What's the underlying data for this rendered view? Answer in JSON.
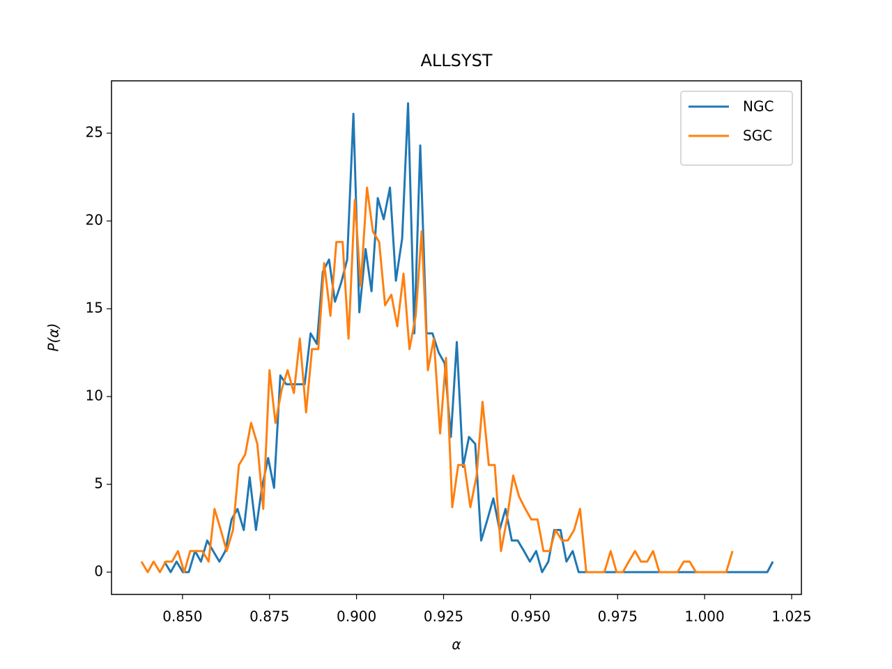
{
  "chart_data": {
    "type": "line",
    "title": "ALLSYST",
    "xlabel": "α",
    "ylabel": "P(α)",
    "xlim": [
      0.8296,
      1.0278
    ],
    "ylim": [
      -1.27,
      27.98
    ],
    "xticks": [
      {
        "value": 0.85,
        "label": "0.850"
      },
      {
        "value": 0.875,
        "label": "0.875"
      },
      {
        "value": 0.9,
        "label": "0.900"
      },
      {
        "value": 0.925,
        "label": "0.925"
      },
      {
        "value": 0.95,
        "label": "0.950"
      },
      {
        "value": 0.975,
        "label": "0.975"
      },
      {
        "value": 1.0,
        "label": "1.000"
      },
      {
        "value": 1.025,
        "label": "1.025"
      }
    ],
    "yticks": [
      0,
      5,
      10,
      15,
      20,
      25
    ],
    "legend": "upper right",
    "series": [
      {
        "name": "NGC",
        "color": "#1f77b4",
        "x": [
          0.8448,
          0.8466,
          0.8483,
          0.8501,
          0.8518,
          0.8536,
          0.8553,
          0.8571,
          0.8588,
          0.8606,
          0.8623,
          0.8641,
          0.8658,
          0.8676,
          0.8693,
          0.8711,
          0.8728,
          0.8746,
          0.8763,
          0.8781,
          0.8798,
          0.8816,
          0.8833,
          0.8851,
          0.8868,
          0.8886,
          0.8903,
          0.8921,
          0.8938,
          0.8956,
          0.8973,
          0.8991,
          0.9008,
          0.9026,
          0.9043,
          0.9061,
          0.9078,
          0.9096,
          0.9113,
          0.9131,
          0.9148,
          0.9166,
          0.9183,
          0.9201,
          0.9218,
          0.9236,
          0.9253,
          0.9271,
          0.9288,
          0.9306,
          0.9323,
          0.9341,
          0.9358,
          0.9376,
          0.9393,
          0.9411,
          0.9428,
          0.9446,
          0.9463,
          0.9481,
          0.9498,
          0.9516,
          0.9533,
          0.9551,
          0.9568,
          0.9586,
          0.9603,
          0.9621,
          0.9638,
          1.018,
          1.0196
        ],
        "values": [
          0.6,
          0,
          0.6,
          0,
          0,
          1.2,
          0.6,
          1.8,
          1.2,
          0.6,
          1.2,
          3.0,
          3.6,
          2.4,
          5.4,
          2.4,
          4.8,
          6.5,
          4.8,
          11.2,
          10.7,
          10.7,
          10.7,
          10.7,
          13.6,
          13.0,
          17.1,
          17.8,
          15.4,
          16.5,
          17.8,
          26.1,
          14.8,
          18.4,
          16.0,
          21.3,
          20.1,
          21.9,
          16.6,
          19.0,
          26.7,
          13.6,
          24.3,
          13.6,
          13.6,
          12.5,
          11.9,
          7.7,
          13.1,
          6.0,
          7.7,
          7.3,
          1.8,
          3.0,
          4.2,
          2.4,
          3.6,
          1.8,
          1.8,
          1.2,
          0.6,
          1.2,
          0,
          0.6,
          2.4,
          2.4,
          0.6,
          1.2,
          0,
          0,
          0.6
        ]
      },
      {
        "name": "SGC",
        "color": "#ff7f0e",
        "x": [
          0.8382,
          0.84,
          0.8417,
          0.8435,
          0.8452,
          0.847,
          0.8487,
          0.8505,
          0.8522,
          0.854,
          0.8557,
          0.8575,
          0.8592,
          0.861,
          0.8627,
          0.8645,
          0.8662,
          0.868,
          0.8697,
          0.8715,
          0.8732,
          0.875,
          0.8767,
          0.8785,
          0.8802,
          0.882,
          0.8837,
          0.8855,
          0.8872,
          0.889,
          0.8907,
          0.8925,
          0.8942,
          0.896,
          0.8977,
          0.8995,
          0.9012,
          0.903,
          0.9047,
          0.9065,
          0.9082,
          0.91,
          0.9117,
          0.9135,
          0.9152,
          0.917,
          0.9187,
          0.9205,
          0.9222,
          0.924,
          0.9257,
          0.9275,
          0.9292,
          0.931,
          0.9327,
          0.9345,
          0.9362,
          0.938,
          0.9397,
          0.9415,
          0.9432,
          0.945,
          0.9467,
          0.9485,
          0.9502,
          0.952,
          0.9537,
          0.9555,
          0.9572,
          0.959,
          0.9607,
          0.9625,
          0.9642,
          0.966,
          0.9677,
          0.9695,
          0.9712,
          0.973,
          0.9747,
          0.9765,
          0.9782,
          0.98,
          0.9817,
          0.9835,
          0.9852,
          0.987,
          0.9887,
          0.9905,
          0.9922,
          0.994,
          0.9957,
          0.9975,
          0.9992,
          1.001,
          1.0027,
          1.0045,
          1.0062,
          1.008
        ],
        "values": [
          0.6,
          0,
          0.6,
          0,
          0.6,
          0.6,
          1.2,
          0,
          1.2,
          1.2,
          1.2,
          0.6,
          3.6,
          2.4,
          1.2,
          2.4,
          6.1,
          6.7,
          8.5,
          7.3,
          3.6,
          11.5,
          8.5,
          10.4,
          11.5,
          10.2,
          13.3,
          9.1,
          12.7,
          12.7,
          17.6,
          14.6,
          18.8,
          18.8,
          13.3,
          21.2,
          16.3,
          21.9,
          19.4,
          18.8,
          15.2,
          15.8,
          14.0,
          17.0,
          12.7,
          14.6,
          19.4,
          11.5,
          13.3,
          7.9,
          12.2,
          3.7,
          6.1,
          6.1,
          3.7,
          5.5,
          9.7,
          6.1,
          6.1,
          1.2,
          3.0,
          5.5,
          4.3,
          3.6,
          3.0,
          3.0,
          1.2,
          1.2,
          2.4,
          1.8,
          1.8,
          2.4,
          3.6,
          0,
          0,
          0,
          0,
          1.2,
          0,
          0,
          0.6,
          1.2,
          0.6,
          0.6,
          1.2,
          0,
          0,
          0,
          0,
          0.6,
          0.6,
          0,
          0,
          0,
          0,
          0,
          0,
          1.2
        ]
      }
    ]
  }
}
